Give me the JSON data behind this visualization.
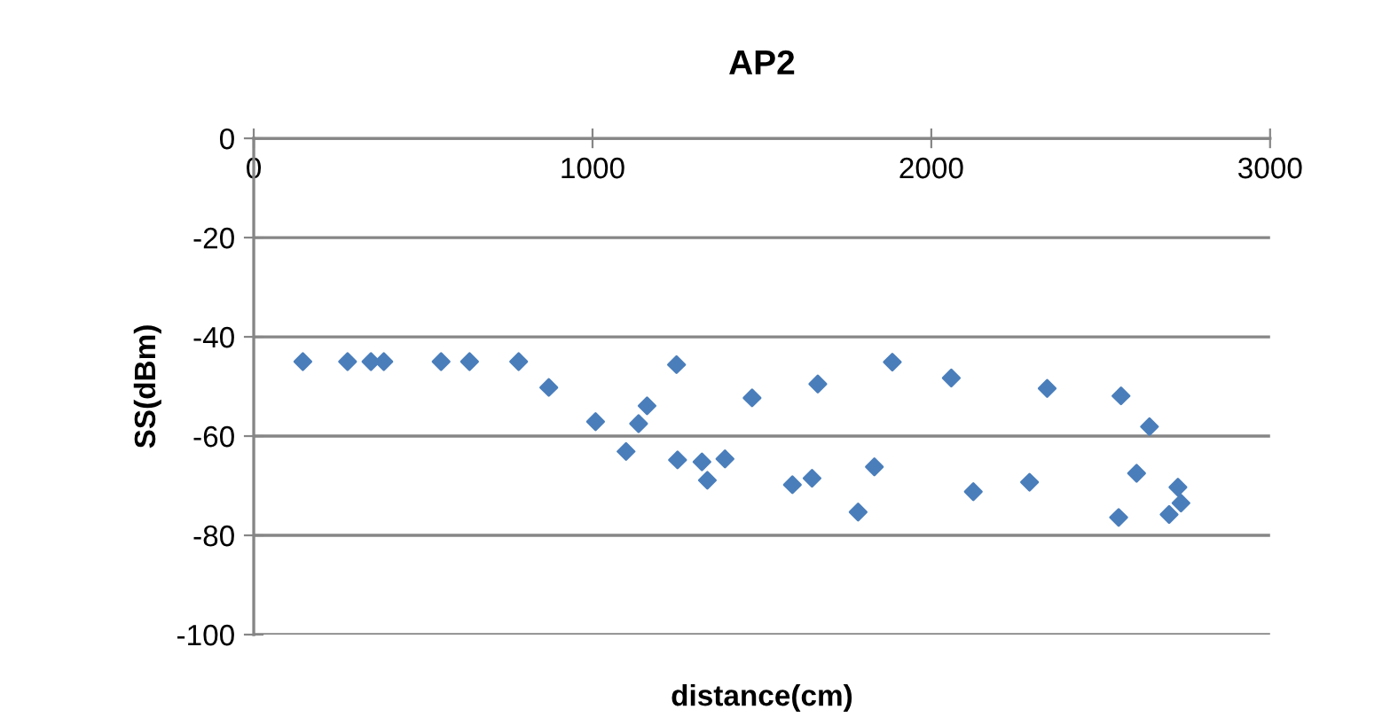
{
  "chart_data": {
    "type": "scatter",
    "title": "AP2",
    "xlabel": "distance(cm)",
    "ylabel": "SS(dBm)",
    "x": [
      145,
      277,
      346,
      384,
      553,
      637,
      782,
      871,
      1009,
      1099,
      1136,
      1161,
      1248,
      1251,
      1323,
      1339,
      1391,
      1471,
      1590,
      1648,
      1665,
      1784,
      1832,
      1885,
      2059,
      2124,
      2290,
      2342,
      2553,
      2560,
      2606,
      2644,
      2702,
      2728,
      2737
    ],
    "series": [
      {
        "color": "#4a7ebb",
        "values": [
          -45,
          -45,
          -45,
          -45,
          -45,
          -45,
          -45,
          -50.2,
          -57.1,
          -63.1,
          -57.5,
          -53.9,
          -45.6,
          -64.8,
          -65.2,
          -68.9,
          -64.6,
          -52.3,
          -69.8,
          -68.5,
          -49.5,
          -75.3,
          -66.2,
          -45.1,
          -48.3,
          -71.2,
          -69.3,
          -50.4,
          -76.4,
          -51.9,
          -67.5,
          -58.1,
          -75.8,
          -70.3,
          -73.5
        ]
      }
    ],
    "xlim": [
      0,
      3000
    ],
    "xticks": [
      0,
      1000,
      2000,
      3000
    ],
    "ylim": [
      -100,
      0
    ],
    "yticks": [
      -100,
      -80,
      -60,
      -40,
      -20,
      0
    ],
    "grid": "y",
    "marker": "diamond",
    "legend": false
  }
}
